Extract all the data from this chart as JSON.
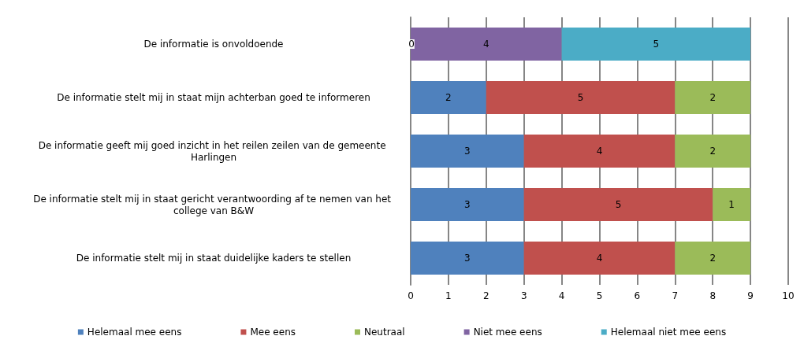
{
  "chart_data": {
    "type": "bar",
    "orientation": "horizontal",
    "stacked": true,
    "categories": [
      "De informatie is onvoldoende",
      "De informatie stelt mij in staat mijn achterban goed te informeren",
      "De informatie geeft mij goed inzicht in het reilen zeilen van de gemeente Harlingen",
      "De informatie stelt mij in staat gericht verantwoording af te nemen van het college van B&W",
      "De informatie stelt mij in staat duidelijke kaders te stellen"
    ],
    "series": [
      {
        "name": "Helemaal mee eens",
        "color": "#4f81bd",
        "values": [
          null,
          2,
          3,
          3,
          3
        ]
      },
      {
        "name": "Mee eens",
        "color": "#c0504d",
        "values": [
          null,
          5,
          4,
          5,
          4
        ]
      },
      {
        "name": "Neutraal",
        "color": "#9bbb59",
        "values": [
          null,
          2,
          2,
          1,
          2
        ]
      },
      {
        "name": "Niet mee eens",
        "color": "#8064a2",
        "values": [
          4,
          null,
          null,
          null,
          null
        ]
      },
      {
        "name": "Helemaal niet mee eens",
        "color": "#4bacc6",
        "values": [
          5,
          null,
          null,
          null,
          null
        ]
      }
    ],
    "xlim": [
      0,
      10
    ],
    "xticks": [
      0,
      1,
      2,
      3,
      4,
      5,
      6,
      7,
      8,
      9,
      10
    ],
    "grid": "x",
    "legend": "bottom",
    "data_labels": true,
    "annotations": [
      {
        "text": "0",
        "x": 0,
        "y": "De informatie is onvoldoende"
      }
    ]
  }
}
